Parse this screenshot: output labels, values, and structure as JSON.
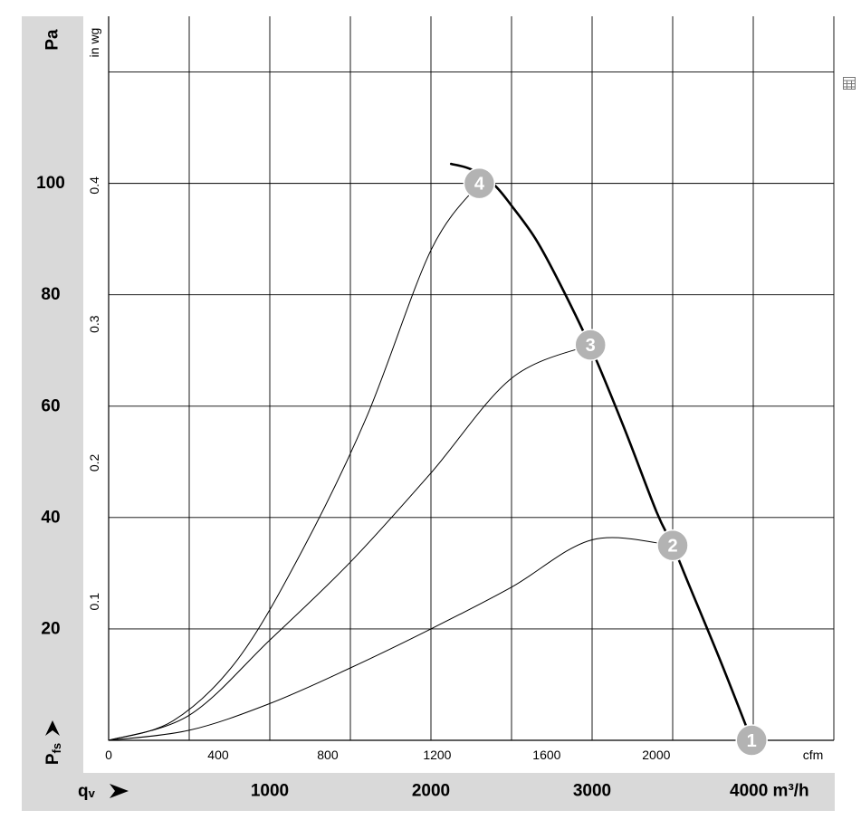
{
  "chart_data": {
    "type": "line",
    "y_label_pa": "Pa",
    "y_label_inwg": "in wg",
    "y_label_pfs_main": "P",
    "y_label_pfs_sub": "fs",
    "x_label_cfm": "cfm",
    "x_label_qv_main": "q",
    "x_label_qv_sub": "v",
    "qv_unit": "m³/h",
    "x_ticks_m3h": [
      "1000",
      "2000",
      "3000",
      "4000"
    ],
    "x_ticks_cfm": [
      "0",
      "400",
      "800",
      "1200",
      "1600",
      "2000"
    ],
    "y_ticks_pa": [
      "20",
      "40",
      "60",
      "80",
      "100"
    ],
    "y_ticks_inwg": [
      "0.1",
      "0.2",
      "0.3",
      "0.4"
    ],
    "xlim_m3h": [
      0,
      4500
    ],
    "ylim_pa": [
      0,
      130
    ],
    "grid": true,
    "series": [
      {
        "label": "fan-curve",
        "x": [
          2125,
          2250,
          2390,
          2500,
          2650,
          2800,
          3000,
          3200,
          3400,
          3500,
          3600,
          3800,
          3990
        ],
        "y": [
          103.5,
          102.5,
          99.8,
          96,
          90,
          82,
          70,
          56,
          41,
          35,
          28,
          14,
          0
        ]
      },
      {
        "label": "system-curve-2",
        "x": [
          0,
          500,
          1000,
          1500,
          2000,
          2500,
          3000,
          3500
        ],
        "y": [
          0,
          1.8,
          6.6,
          13,
          20,
          27.5,
          36,
          35
        ]
      },
      {
        "label": "system-curve-3",
        "x": [
          0,
          500,
          1000,
          1500,
          2000,
          2500,
          2990
        ],
        "y": [
          0,
          4.5,
          18,
          32,
          48,
          65,
          71
        ]
      },
      {
        "label": "system-curve-4",
        "x": [
          0,
          400,
          800,
          1200,
          1600,
          2000,
          2300
        ],
        "y": [
          0,
          3.5,
          14.5,
          34,
          58,
          88,
          100
        ]
      }
    ],
    "markers": [
      {
        "label": "1",
        "x": 3990,
        "y": 0
      },
      {
        "label": "2",
        "x": 3500,
        "y": 35
      },
      {
        "label": "3",
        "x": 2990,
        "y": 71
      },
      {
        "label": "4",
        "x": 2300,
        "y": 100
      }
    ]
  }
}
